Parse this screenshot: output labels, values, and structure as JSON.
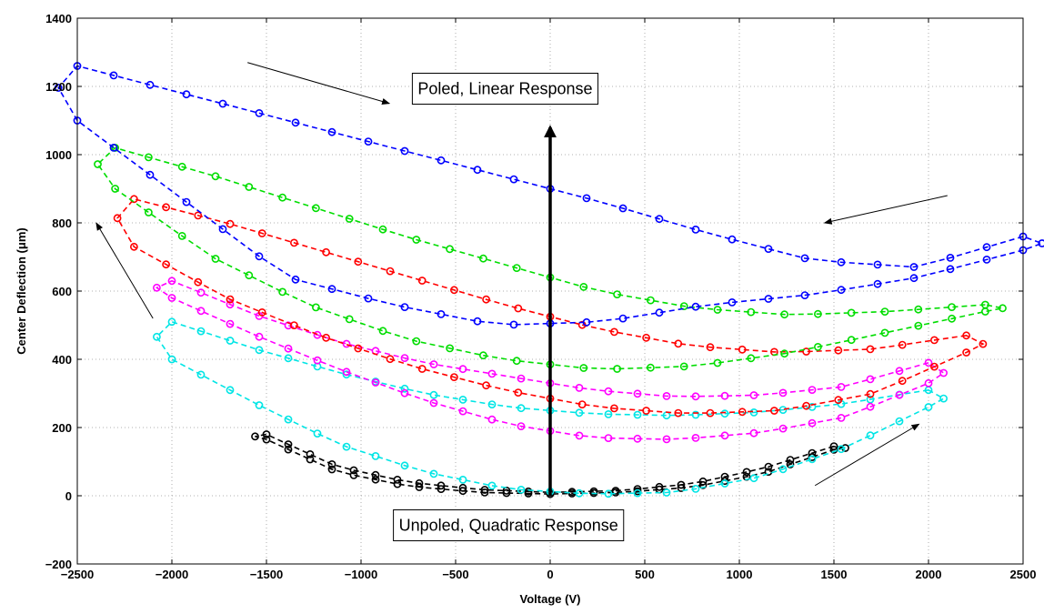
{
  "chart_data": {
    "type": "scatter",
    "title": "",
    "xlabel": "Voltage (V)",
    "ylabel": "Center Deflection (μm)",
    "xlim": [
      -2500,
      2500
    ],
    "ylim": [
      -200,
      1400
    ],
    "xticks": [
      -2500,
      -2000,
      -1500,
      -1000,
      -500,
      0,
      500,
      1000,
      1500,
      2000,
      2500
    ],
    "yticks": [
      -200,
      0,
      200,
      400,
      600,
      800,
      1000,
      1200,
      1400
    ],
    "xtick_labels": [
      "−2500",
      "−2000",
      "−1500",
      "−1000",
      "−500",
      "0",
      "500",
      "1000",
      "1500",
      "2000",
      "2500"
    ],
    "ytick_labels": [
      "−200",
      "0",
      "200",
      "400",
      "600",
      "800",
      "1000",
      "1200",
      "1400"
    ],
    "grid": true,
    "series": [
      {
        "color": "#000000",
        "loop": {
          "xmin": -1500,
          "xmax": 1500,
          "upper": [
            180,
            85,
            40,
            18,
            10,
            15,
            35,
            80,
            145
          ],
          "lower": [
            165,
            70,
            28,
            10,
            5,
            10,
            25,
            65,
            135
          ]
        }
      },
      {
        "color": "#00e5e5",
        "loop": {
          "xmin": -2000,
          "xmax": 2000,
          "upper": [
            510,
            430,
            360,
            300,
            260,
            240,
            235,
            245,
            270,
            310
          ],
          "lower": [
            400,
            270,
            150,
            70,
            20,
            5,
            10,
            55,
            140,
            260
          ]
        }
      },
      {
        "color": "#ff00ff",
        "loop": {
          "xmin": -2000,
          "xmax": 2000,
          "upper": [
            630,
            530,
            450,
            390,
            350,
            310,
            290,
            295,
            320,
            390
          ],
          "lower": [
            580,
            470,
            370,
            280,
            210,
            170,
            165,
            185,
            230,
            330
          ]
        }
      },
      {
        "color": "#ff0000",
        "loop": {
          "xmin": -2200,
          "xmax": 2200,
          "upper": [
            870,
            800,
            720,
            640,
            560,
            490,
            440,
            420,
            430,
            470
          ],
          "lower": [
            730,
            580,
            470,
            380,
            310,
            260,
            240,
            250,
            300,
            420
          ]
        }
      },
      {
        "color": "#00dd00",
        "loop": {
          "xmin": -2300,
          "xmax": 2300,
          "upper": [
            1020,
            940,
            850,
            760,
            680,
            600,
            550,
            530,
            540,
            560
          ],
          "lower": [
            900,
            700,
            560,
            460,
            400,
            370,
            380,
            420,
            480,
            540
          ]
        }
      },
      {
        "color": "#0000ff",
        "loop": {
          "xmin": -2500,
          "xmax": 2500,
          "upper": [
            1260,
            1180,
            1100,
            1020,
            940,
            860,
            770,
            690,
            670,
            760
          ],
          "lower": [
            1100,
            870,
            640,
            560,
            500,
            510,
            560,
            590,
            640,
            720
          ]
        }
      }
    ],
    "annotations": [
      {
        "text": "Poled, Linear Response",
        "x": -700,
        "y": 1190
      },
      {
        "text": "Unpoled, Quadratic Response",
        "x": -800,
        "y": -90
      }
    ],
    "vertical_arrow": {
      "x": 0,
      "y_from": 0,
      "y_to": 1080
    },
    "arrows": [
      {
        "from": [
          -1600,
          1270
        ],
        "to": [
          -850,
          1150
        ]
      },
      {
        "from": [
          2100,
          880
        ],
        "to": [
          1450,
          800
        ]
      },
      {
        "from": [
          -2100,
          520
        ],
        "to": [
          -2400,
          800
        ]
      },
      {
        "from": [
          1400,
          30
        ],
        "to": [
          1950,
          210
        ]
      }
    ]
  }
}
